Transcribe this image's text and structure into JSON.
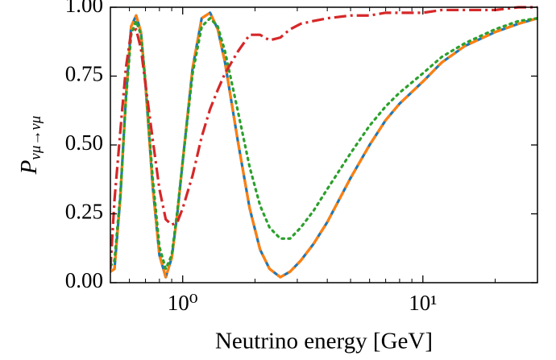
{
  "chart_data": {
    "type": "line",
    "xlabel": "Neutrino energy [GeV]",
    "ylabel": {
      "main": "P",
      "sub": "νμ→νμ"
    },
    "x": [
      0.5,
      0.52,
      0.55,
      0.58,
      0.61,
      0.64,
      0.67,
      0.7,
      0.75,
      0.8,
      0.85,
      0.9,
      0.95,
      1.0,
      1.1,
      1.2,
      1.3,
      1.4,
      1.5,
      1.7,
      1.9,
      2.1,
      2.3,
      2.55,
      2.8,
      3.1,
      3.5,
      4,
      5,
      6,
      7,
      8,
      10,
      12,
      15,
      20,
      25,
      30
    ],
    "series": [
      {
        "color": "#1f77b4",
        "style": "solid",
        "values": [
          0.04,
          0.05,
          0.31,
          0.67,
          0.93,
          0.97,
          0.91,
          0.72,
          0.35,
          0.1,
          0.02,
          0.09,
          0.25,
          0.44,
          0.78,
          0.96,
          0.98,
          0.92,
          0.8,
          0.51,
          0.27,
          0.12,
          0.05,
          0.02,
          0.04,
          0.08,
          0.14,
          0.22,
          0.38,
          0.5,
          0.59,
          0.65,
          0.73,
          0.8,
          0.86,
          0.91,
          0.94,
          0.96
        ]
      },
      {
        "color": "#ff7f0e",
        "style": "dashed",
        "values": [
          0.04,
          0.05,
          0.31,
          0.67,
          0.93,
          0.97,
          0.91,
          0.72,
          0.35,
          0.1,
          0.02,
          0.09,
          0.25,
          0.44,
          0.78,
          0.96,
          0.98,
          0.92,
          0.8,
          0.51,
          0.27,
          0.12,
          0.05,
          0.02,
          0.04,
          0.08,
          0.14,
          0.22,
          0.38,
          0.5,
          0.59,
          0.65,
          0.73,
          0.8,
          0.86,
          0.91,
          0.94,
          0.96
        ]
      },
      {
        "color": "#2ca02c",
        "style": "dotted",
        "values": [
          0.06,
          0.08,
          0.32,
          0.66,
          0.9,
          0.95,
          0.9,
          0.73,
          0.38,
          0.13,
          0.05,
          0.1,
          0.26,
          0.44,
          0.76,
          0.93,
          0.96,
          0.93,
          0.84,
          0.62,
          0.42,
          0.28,
          0.2,
          0.16,
          0.16,
          0.2,
          0.26,
          0.34,
          0.47,
          0.57,
          0.64,
          0.69,
          0.76,
          0.82,
          0.87,
          0.92,
          0.95,
          0.96
        ]
      },
      {
        "color": "#d62728",
        "style": "dashdot",
        "values": [
          0.05,
          0.3,
          0.55,
          0.78,
          0.91,
          0.92,
          0.85,
          0.72,
          0.52,
          0.34,
          0.23,
          0.21,
          0.22,
          0.27,
          0.39,
          0.53,
          0.63,
          0.7,
          0.76,
          0.84,
          0.9,
          0.9,
          0.88,
          0.89,
          0.92,
          0.94,
          0.95,
          0.96,
          0.97,
          0.97,
          0.98,
          0.98,
          0.98,
          0.99,
          0.99,
          0.99,
          1.0,
          1.0
        ]
      }
    ],
    "log_x": true,
    "xlim": [
      0.5,
      30
    ],
    "xticks": [
      {
        "value": 1,
        "label": "10⁰"
      },
      {
        "value": 10,
        "label": "10¹"
      }
    ],
    "xminorticks": [
      0.5,
      0.6,
      0.7,
      0.8,
      0.9,
      2,
      3,
      4,
      5,
      6,
      7,
      8,
      9,
      20,
      30
    ],
    "ylim": [
      0,
      1
    ],
    "yticks": [
      {
        "value": 0,
        "label": "0.00"
      },
      {
        "value": 0.25,
        "label": "0.25"
      },
      {
        "value": 0.5,
        "label": "0.50"
      },
      {
        "value": 0.75,
        "label": "0.75"
      },
      {
        "value": 1,
        "label": "1.00"
      }
    ]
  }
}
